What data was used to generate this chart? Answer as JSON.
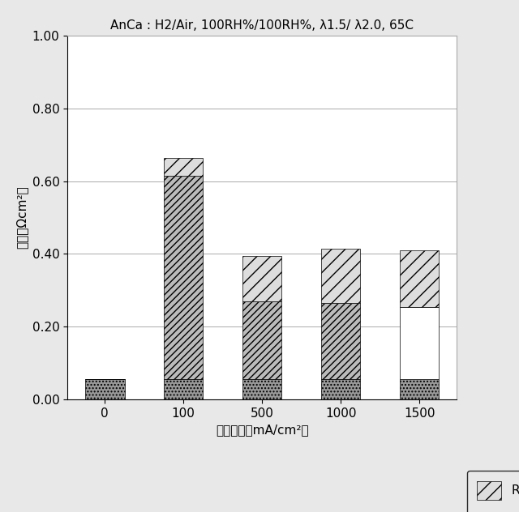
{
  "title": "AnCa : H2/Air, 100RH%/100RH%, λ1.5/ λ2.0, 65C",
  "xlabel": "電流密度［mA/cm²］",
  "ylabel": "抵抗（Ωcm²）",
  "categories": [
    "0",
    "100",
    "500",
    "1000",
    "1500"
  ],
  "ylim": [
    0.0,
    1.0
  ],
  "yticks": [
    0.0,
    0.2,
    0.4,
    0.6,
    0.8,
    1.0
  ],
  "bar_width": 0.5,
  "Rm": [
    0.055,
    0.055,
    0.055,
    0.055,
    0.055
  ],
  "Rcl": [
    0.0,
    0.0,
    0.0,
    0.0,
    0.2
  ],
  "Rct": [
    0.0,
    0.56,
    0.215,
    0.21,
    0.0
  ],
  "Rtr": [
    0.0,
    0.05,
    0.125,
    0.15,
    0.155
  ],
  "color_Rm": "#999999",
  "color_Rcl": "#ffffff",
  "color_Rct": "#bbbbbb",
  "color_Rtr": "#dddddd",
  "hatch_Rm": "....",
  "hatch_Rcl": "",
  "hatch_Rct": "////",
  "hatch_Rtr": "////",
  "bg_color": "#e8e8e8",
  "plot_bg": "#ffffff",
  "title_fontsize": 11,
  "axis_fontsize": 11,
  "tick_fontsize": 11,
  "legend_fontsize": 11
}
